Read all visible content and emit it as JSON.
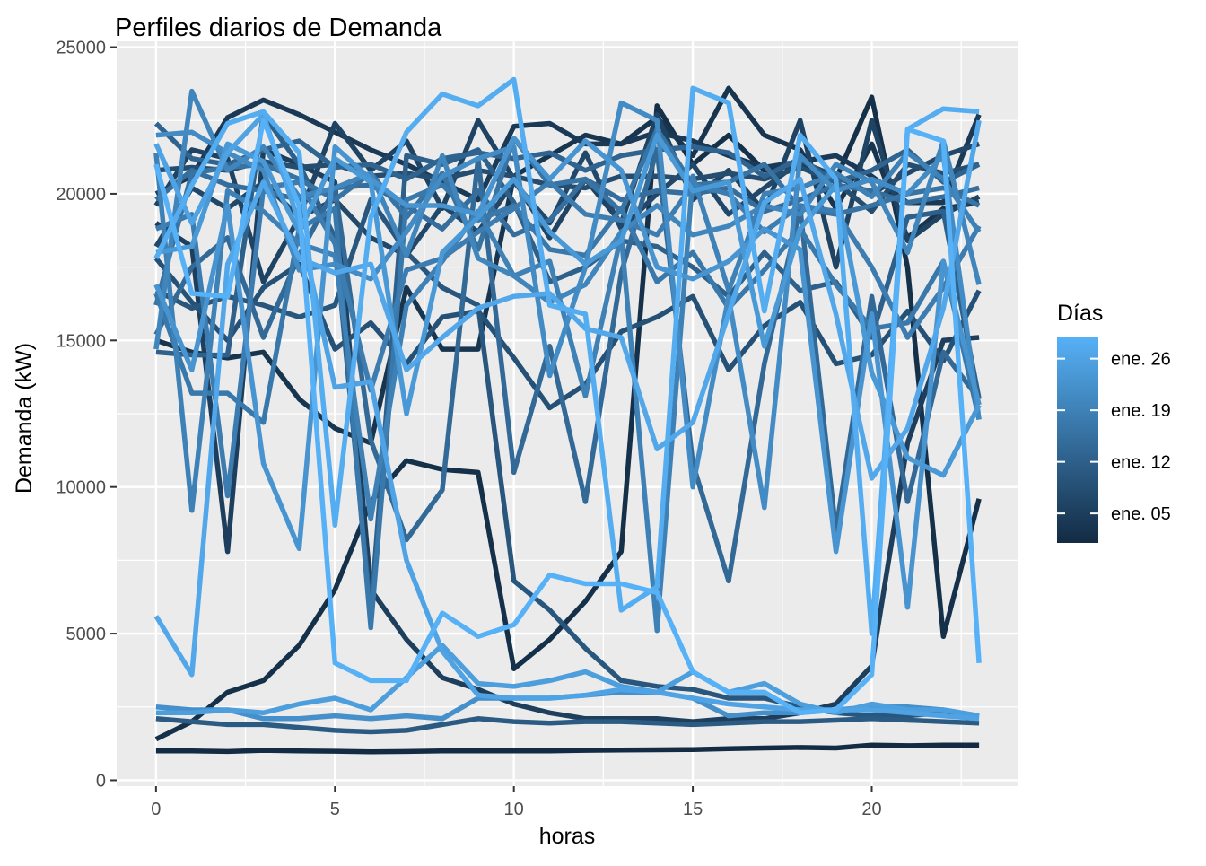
{
  "chart_data": {
    "type": "line",
    "title": "Perfiles diarios de Demanda",
    "xlabel": "horas",
    "ylabel": "Demanda (kW)",
    "xlim": [
      -1.1,
      24.1
    ],
    "ylim": [
      -200,
      25200
    ],
    "x_ticks": [
      0,
      5,
      10,
      15,
      20
    ],
    "y_ticks": [
      0,
      5000,
      10000,
      15000,
      20000,
      25000
    ],
    "grid": true,
    "panel_background": "#EBEBEB",
    "legend": {
      "title": "Días",
      "position": "right",
      "type": "colorbar",
      "low_color": "#132B43",
      "high_color": "#56B1F7",
      "labels": [
        "ene. 26",
        "ene. 19",
        "ene. 12",
        "ene. 05"
      ],
      "label_days": [
        26,
        19,
        12,
        5
      ],
      "day_range": [
        1,
        29
      ]
    },
    "x": [
      0,
      1,
      2,
      3,
      4,
      5,
      6,
      7,
      8,
      9,
      10,
      11,
      12,
      13,
      14,
      15,
      16,
      17,
      18,
      19,
      20,
      21,
      22,
      23
    ],
    "series": [
      {
        "day": 1,
        "values": [
          1000,
          1000,
          980,
          1020,
          1000,
          990,
          970,
          980,
          1000,
          1000,
          1000,
          1000,
          1020,
          1030,
          1040,
          1050,
          1080,
          1100,
          1120,
          1100,
          1200,
          1180,
          1200,
          1200
        ]
      },
      {
        "day": 2,
        "values": [
          1400,
          2000,
          3000,
          3400,
          4600,
          6500,
          9500,
          10900,
          10600,
          10500,
          3800,
          4800,
          6100,
          7800,
          23000,
          21000,
          22000,
          20800,
          21000,
          20500,
          23300,
          17500,
          4900,
          9600
        ]
      },
      {
        "day": 3,
        "values": [
          15000,
          14600,
          14400,
          14600,
          13000,
          12000,
          11500,
          16800,
          14700,
          14700,
          20600,
          21300,
          22000,
          21700,
          22600,
          21300,
          23600,
          22000,
          21500,
          19500,
          21700,
          18500,
          19500,
          19700
        ]
      },
      {
        "day": 4,
        "values": [
          20000,
          20600,
          22600,
          23200,
          22700,
          22100,
          21500,
          21000,
          20400,
          19800,
          22300,
          22400,
          21700,
          21700,
          22100,
          21800,
          21300,
          20900,
          21100,
          21300,
          20600,
          19700,
          19700,
          22700
        ]
      },
      {
        "day": 5,
        "values": [
          19000,
          18200,
          7800,
          21500,
          21000,
          20400,
          6500,
          4800,
          3500,
          3100,
          2600,
          2300,
          2100,
          2100,
          2100,
          2000,
          2100,
          2100,
          2300,
          2600,
          3900,
          11500,
          15000,
          15100
        ]
      },
      {
        "day": 6,
        "values": [
          19600,
          21500,
          21200,
          17000,
          19200,
          22400,
          20800,
          21800,
          19500,
          22500,
          20500,
          18500,
          20500,
          19000,
          22700,
          19800,
          20800,
          19400,
          22500,
          17500,
          22500,
          18400,
          19300,
          19900
        ]
      },
      {
        "day": 7,
        "values": [
          18200,
          20200,
          19500,
          20400,
          19200,
          19800,
          18500,
          17900,
          19600,
          18700,
          20400,
          19000,
          21400,
          18800,
          20000,
          21000,
          19300,
          20200,
          21100,
          20600,
          20000,
          20700,
          21300,
          21700
        ]
      },
      {
        "day": 8,
        "values": [
          20800,
          20900,
          20800,
          21100,
          20900,
          21000,
          20600,
          20700,
          20500,
          20800,
          20600,
          20300,
          20200,
          20600,
          20600,
          20500,
          20700,
          20500,
          20900,
          20400,
          19400,
          21000,
          20700,
          21000
        ]
      },
      {
        "day": 9,
        "values": [
          17800,
          16300,
          15000,
          16800,
          17600,
          14700,
          15600,
          14200,
          15800,
          16000,
          14400,
          12700,
          13500,
          15300,
          15800,
          16500,
          14000,
          15500,
          16300,
          14200,
          14500,
          16000,
          14300,
          16700
        ]
      },
      {
        "day": 10,
        "values": [
          16700,
          16100,
          16500,
          16200,
          15800,
          16200,
          19800,
          18000,
          16800,
          16200,
          6800,
          5800,
          4500,
          3400,
          3200,
          3100,
          2800,
          2800,
          2500,
          2300,
          2200,
          2200,
          2300,
          2200
        ]
      },
      {
        "day": 11,
        "values": [
          2100,
          2000,
          1900,
          1900,
          1800,
          1700,
          1650,
          1700,
          1900,
          2100,
          2000,
          1950,
          2000,
          2000,
          1950,
          1900,
          1950,
          2000,
          2000,
          2050,
          2100,
          2050,
          2000,
          1950
        ]
      },
      {
        "day": 12,
        "values": [
          14600,
          14500,
          14500,
          22700,
          21000,
          18500,
          5700,
          21300,
          21000,
          21500,
          19700,
          17000,
          17500,
          18400,
          18200,
          17500,
          16500,
          18000,
          16700,
          17000,
          15100,
          19200,
          19400,
          13000
        ]
      },
      {
        "day": 13,
        "values": [
          22400,
          21200,
          21000,
          21500,
          21800,
          20900,
          21000,
          20500,
          21200,
          21400,
          21200,
          21400,
          20800,
          21300,
          21500,
          21600,
          21400,
          20600,
          21200,
          20400,
          20800,
          21500,
          20400,
          21000
        ]
      },
      {
        "day": 14,
        "values": [
          15200,
          17500,
          18500,
          15100,
          17900,
          20200,
          11600,
          8200,
          9900,
          21200,
          10500,
          14800,
          9500,
          17300,
          21500,
          10800,
          6800,
          14200,
          19500,
          8500,
          16500,
          9500,
          14600,
          13000
        ]
      },
      {
        "day": 15,
        "values": [
          19800,
          20800,
          20300,
          20100,
          19800,
          20200,
          20300,
          19600,
          18800,
          20100,
          18600,
          19100,
          20500,
          19800,
          20100,
          20000,
          20200,
          19400,
          19800,
          20300,
          20100,
          19700,
          19900,
          20200
        ]
      },
      {
        "day": 16,
        "values": [
          16200,
          20700,
          20900,
          21000,
          20500,
          19800,
          20700,
          19200,
          20700,
          18100,
          21900,
          20300,
          20500,
          19400,
          22200,
          20300,
          20400,
          21000,
          19500,
          19300,
          19600,
          20000,
          20200,
          19600
        ]
      },
      {
        "day": 17,
        "values": [
          16600,
          13200,
          13200,
          12200,
          18800,
          19500,
          5200,
          19800,
          20300,
          19100,
          19600,
          18100,
          17900,
          19500,
          17000,
          18000,
          16100,
          17400,
          18800,
          16900,
          15400,
          15600,
          17700,
          12300
        ]
      },
      {
        "day": 18,
        "values": [
          18800,
          19300,
          9700,
          20200,
          20400,
          18300,
          13300,
          17400,
          17800,
          18700,
          19500,
          20400,
          19300,
          19100,
          18600,
          20300,
          20000,
          18700,
          19600,
          19400,
          17500,
          15100,
          16800,
          18900
        ]
      },
      {
        "day": 19,
        "values": [
          21400,
          9200,
          20100,
          19400,
          18300,
          17900,
          8900,
          16200,
          17700,
          19400,
          17200,
          17700,
          13100,
          18600,
          5100,
          20600,
          16700,
          20000,
          20200,
          20700,
          19900,
          21400,
          20500,
          18700
        ]
      },
      {
        "day": 20,
        "values": [
          14700,
          23500,
          20800,
          21600,
          19900,
          20200,
          20700,
          17900,
          21300,
          17800,
          17200,
          16300,
          16900,
          18700,
          19600,
          18600,
          18900,
          19600,
          19300,
          21000,
          20400,
          18000,
          21800,
          16900
        ]
      },
      {
        "day": 21,
        "values": [
          22000,
          22100,
          21400,
          20800,
          17400,
          17600,
          17100,
          18700,
          20600,
          21200,
          21600,
          13800,
          17500,
          23100,
          22500,
          10000,
          16500,
          9300,
          21300,
          20100,
          20500,
          20000,
          21300,
          12300
        ]
      },
      {
        "day": 22,
        "values": [
          2500,
          2400,
          2400,
          2100,
          2100,
          2200,
          2100,
          2200,
          2100,
          2800,
          2800,
          2800,
          2900,
          3000,
          3000,
          2800,
          2200,
          2300,
          2300,
          2400,
          2500,
          2500,
          2400,
          2200
        ]
      },
      {
        "day": 23,
        "values": [
          16900,
          14000,
          19600,
          10800,
          7900,
          21600,
          20500,
          19600,
          19600,
          19300,
          21900,
          20500,
          21800,
          20800,
          17500,
          17100,
          17700,
          18800,
          18100,
          7800,
          15900,
          5900,
          17700,
          12800
        ]
      },
      {
        "day": 24,
        "values": [
          18000,
          18200,
          21700,
          21100,
          18700,
          21200,
          20400,
          12500,
          18000,
          19200,
          20500,
          18700,
          17600,
          18400,
          22000,
          20100,
          20400,
          14800,
          18800,
          20300,
          13900,
          11000,
          10400,
          12800
        ]
      },
      {
        "day": 25,
        "values": [
          2300,
          2300,
          2400,
          2300,
          2600,
          2800,
          2400,
          3500,
          4600,
          3300,
          3200,
          3400,
          3700,
          3200,
          3000,
          3700,
          3000,
          3300,
          2600,
          2300,
          2600,
          2400,
          2400,
          2200
        ]
      },
      {
        "day": 26,
        "values": [
          21700,
          19000,
          21400,
          22700,
          19000,
          13400,
          13600,
          7500,
          4400,
          2900,
          2800,
          2800,
          2900,
          3100,
          3000,
          2800,
          2600,
          2500,
          2400,
          2400,
          2400,
          2300,
          2200,
          2100
        ]
      },
      {
        "day": 27,
        "values": [
          5600,
          3600,
          17600,
          20400,
          17800,
          17300,
          17600,
          14000,
          15100,
          16100,
          16500,
          16600,
          15400,
          15100,
          11300,
          12200,
          15900,
          19700,
          20500,
          15900,
          10300,
          12000,
          16100,
          22500
        ]
      },
      {
        "day": 28,
        "values": [
          17800,
          20300,
          22400,
          22800,
          21400,
          8700,
          19200,
          22100,
          23400,
          23000,
          23900,
          16200,
          15900,
          5800,
          6600,
          23600,
          23100,
          16000,
          22000,
          20500,
          5000,
          22200,
          22900,
          22800
        ]
      },
      {
        "day": 29,
        "values": [
          21000,
          16600,
          16500,
          22500,
          19600,
          4000,
          3400,
          3400,
          5700,
          4900,
          5300,
          7000,
          6700,
          6700,
          6400,
          3700,
          3000,
          3000,
          2300,
          2400,
          3600,
          22200,
          21800,
          4000
        ]
      }
    ]
  }
}
